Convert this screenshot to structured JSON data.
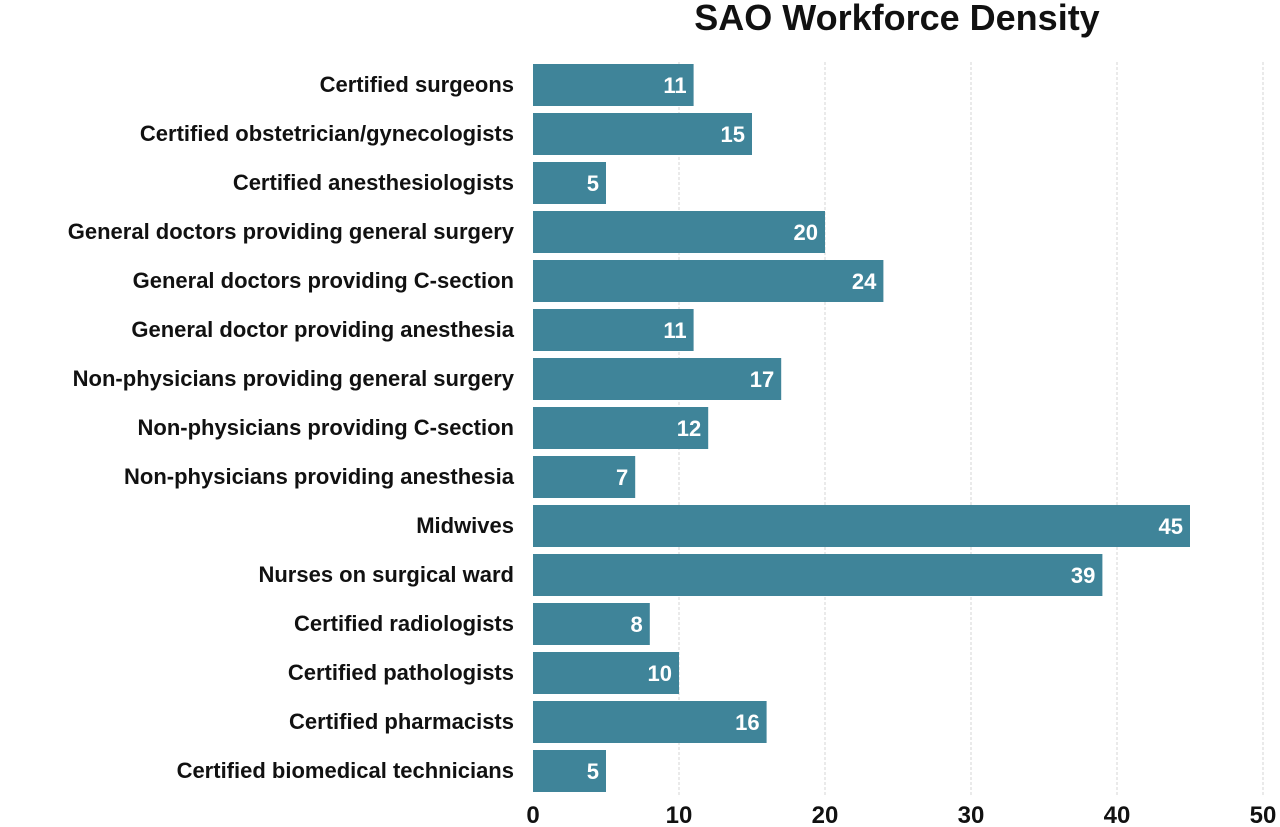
{
  "chart_data": {
    "type": "bar",
    "orientation": "horizontal",
    "title": "SAO Workforce Density",
    "xlabel": "",
    "ylabel": "",
    "categories": [
      "Certified surgeons",
      "Certified obstetrician/gynecologists",
      "Certified anesthesiologists",
      "General doctors providing general surgery",
      "General doctors providing C-section",
      "General doctor providing anesthesia",
      "Non-physicians providing general surgery",
      "Non-physicians providing C-section",
      "Non-physicians providing anesthesia",
      "Midwives",
      "Nurses on surgical ward",
      "Certified radiologists",
      "Certified pathologists",
      "Certified pharmacists",
      "Certified biomedical technicians"
    ],
    "values": [
      11,
      15,
      5,
      20,
      24,
      11,
      17,
      12,
      7,
      45,
      39,
      8,
      10,
      16,
      5
    ],
    "xlim": [
      0,
      50
    ],
    "xticks": [
      0,
      10,
      20,
      30,
      40,
      50
    ],
    "grid": true,
    "bar_color": "#3f8499",
    "data_labels": true
  }
}
